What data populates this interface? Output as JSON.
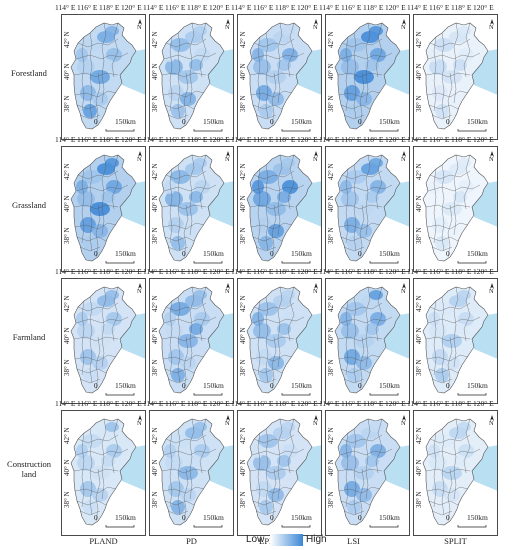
{
  "rows": [
    {
      "label_lines": [
        "Forestland"
      ]
    },
    {
      "label_lines": [
        "Grassland"
      ]
    },
    {
      "label_lines": [
        "Farmland"
      ]
    },
    {
      "label_lines": [
        "Construction",
        "land"
      ]
    }
  ],
  "columns": [
    "PLAND",
    "PD",
    "LPI",
    "LSI",
    "SPLIT"
  ],
  "longitude_labels": [
    "114° E",
    "116° E",
    "118° E",
    "120° E"
  ],
  "latitude_labels": [
    "42° N",
    "40° N",
    "38° N"
  ],
  "scale": {
    "zero": "0",
    "distance": "150km"
  },
  "north_symbol": "N",
  "legend": {
    "low": "Low",
    "high": "High"
  },
  "colors": {
    "low": "#ffffff",
    "high": "#3a86d6",
    "sea": "#b9dff2",
    "outside": "#f4f4f4",
    "border": "#555555"
  },
  "shading": [
    [
      0.55,
      0.45,
      0.5,
      0.7,
      0.2
    ],
    [
      0.7,
      0.45,
      0.65,
      0.55,
      0.15
    ],
    [
      0.4,
      0.5,
      0.45,
      0.55,
      0.3
    ],
    [
      0.35,
      0.45,
      0.4,
      0.5,
      0.25
    ]
  ]
}
